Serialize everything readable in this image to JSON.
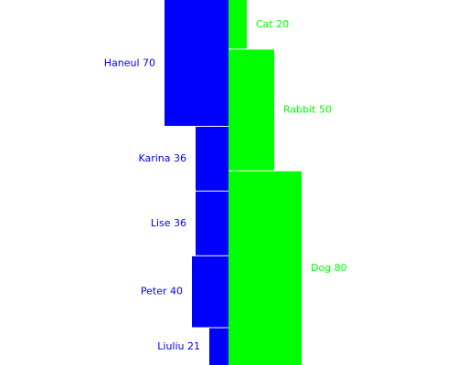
{
  "chart_data": {
    "type": "bar",
    "orientation": "diverging-horizontal",
    "series": [
      {
        "name": "",
        "color": "#0000ff",
        "side": "left",
        "labels": [
          "Haneul 70",
          "Karina 36",
          "Lise 36",
          "Peter 40",
          "Liuliu 21"
        ],
        "categories": [
          "Haneul",
          "Karina",
          "Lise",
          "Peter",
          "Liuliu"
        ],
        "values": [
          70,
          36,
          36,
          40,
          21
        ]
      },
      {
        "name": "",
        "color": "#00ff00",
        "side": "right",
        "labels": [
          "Cat 20",
          "Rabbit 50",
          "Dog 80"
        ],
        "categories": [
          "Cat",
          "Rabbit",
          "Dog"
        ],
        "values": [
          20,
          50,
          80
        ]
      }
    ]
  }
}
